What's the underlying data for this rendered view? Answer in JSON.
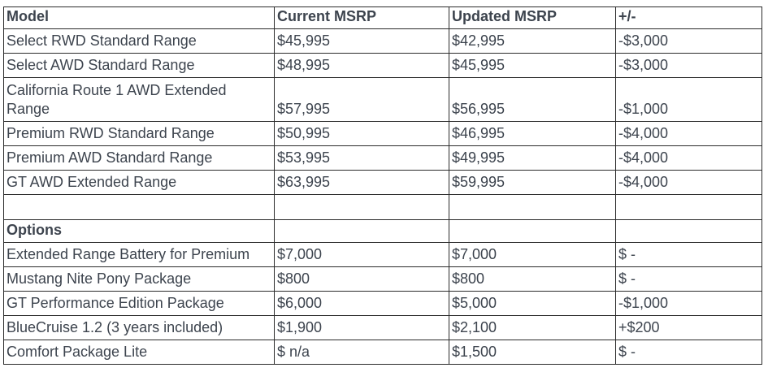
{
  "table": {
    "text_color": "#3d444e",
    "border_color": "#2b2b2b",
    "header": {
      "model": "Model",
      "current": "Current MSRP",
      "updated": "Updated MSRP",
      "change": "+/-"
    },
    "model_rows": [
      {
        "model": "Select RWD Standard Range",
        "current": "$45,995",
        "updated": "$42,995",
        "change": "-$3,000",
        "tall": false
      },
      {
        "model": "Select AWD Standard Range",
        "current": "$48,995",
        "updated": "$45,995",
        "change": "-$3,000",
        "tall": false
      },
      {
        "model": "California Route 1 AWD Extended Range",
        "current": "$57,995",
        "updated": "$56,995",
        "change": "-$1,000",
        "tall": true
      },
      {
        "model": "Premium RWD Standard Range",
        "current": "$50,995",
        "updated": "$46,995",
        "change": "-$4,000",
        "tall": false
      },
      {
        "model": "Premium AWD Standard Range",
        "current": "$53,995",
        "updated": "$49,995",
        "change": "-$4,000",
        "tall": false
      },
      {
        "model": "GT AWD Extended Range",
        "current": "$63,995",
        "updated": "$59,995",
        "change": "-$4,000",
        "tall": false
      }
    ],
    "section_label": "Options",
    "option_rows": [
      {
        "model": "Extended Range Battery for Premium",
        "current": "$7,000",
        "updated": "$7,000",
        "change": "$ -",
        "tall": false
      },
      {
        "model": "Mustang Nite Pony Package",
        "current": "$800",
        "updated": "$800",
        "change": "$ -",
        "tall": false
      },
      {
        "model": "GT Performance Edition Package",
        "current": "$6,000",
        "updated": "$5,000",
        "change": "-$1,000",
        "tall": false
      },
      {
        "model": "BlueCruise 1.2 (3 years included)",
        "current": "$1,900",
        "updated": "$2,100",
        "change": "+$200",
        "tall": false
      },
      {
        "model": "Comfort Package Lite",
        "current": "$ n/a",
        "updated": "$1,500",
        "change": "$ -",
        "tall": false
      }
    ]
  }
}
